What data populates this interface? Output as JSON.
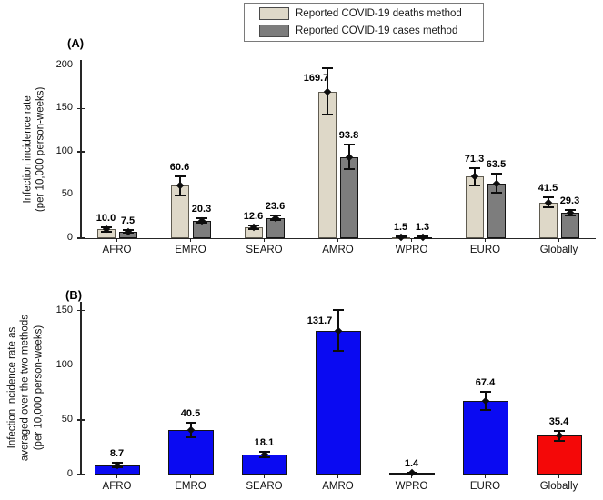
{
  "figure": {
    "panel_a_letter": "(A)",
    "panel_b_letter": "(B)"
  },
  "legend": {
    "position": "top-outside",
    "items": [
      {
        "label": "Reported COVID-19 deaths method",
        "color": "#ded8c8"
      },
      {
        "label": "Reported COVID-19 cases method",
        "color": "#7d7d7d"
      }
    ]
  },
  "colors": {
    "deaths_bar": "#ded8c8",
    "deaths_border": "#5f5b50",
    "cases_bar": "#7d7d7d",
    "cases_border": "#141414",
    "region_bar_blue": "#0a0af2",
    "global_bar_red": "#f40808",
    "axis": "#262626",
    "error_bar": "#0d0d0d"
  },
  "chart_data": [
    {
      "type": "bar",
      "panel": "A",
      "title": "",
      "xlabel": "",
      "ylabel": "Infection incidence rate\n(per 10,000 person-weeks)",
      "categories": [
        "AFRO",
        "EMRO",
        "SEARO",
        "AMRO",
        "WPRO",
        "EURO",
        "Globally"
      ],
      "yticks": [
        0,
        50,
        100,
        150,
        200
      ],
      "ylim": [
        0,
        206
      ],
      "grid": false,
      "legend_position": "north-outside",
      "series": [
        {
          "name": "Reported COVID-19 deaths method",
          "color": "#ded8c8",
          "border": "#5f5b50",
          "values": [
            10.0,
            60.6,
            12.6,
            169.7,
            1.5,
            71.3,
            41.5
          ],
          "errors": [
            2.5,
            11,
            2,
            27,
            0.5,
            10,
            6
          ],
          "label_dx": [
            0,
            0,
            0,
            -12,
            0,
            0,
            0
          ],
          "label_dy": [
            0,
            0,
            0,
            21,
            0,
            0,
            0
          ]
        },
        {
          "name": "Reported COVID-19 cases method",
          "color": "#7d7d7d",
          "border": "#141414",
          "values": [
            7.5,
            20.3,
            23.6,
            93.8,
            1.3,
            63.5,
            29.3
          ],
          "errors": [
            1.5,
            2.5,
            3,
            14,
            0.5,
            11,
            3
          ],
          "label_dx": [
            0,
            0,
            0,
            0,
            0,
            0,
            0
          ],
          "label_dy": [
            0,
            0,
            0,
            0,
            0,
            0,
            0
          ]
        }
      ]
    },
    {
      "type": "bar",
      "panel": "B",
      "title": "",
      "xlabel": "",
      "ylabel": "Infection incidence rate as\naveraged over the two methods\n(per 10,000 person-weeks)",
      "categories": [
        "AFRO",
        "EMRO",
        "SEARO",
        "AMRO",
        "WPRO",
        "EURO",
        "Globally"
      ],
      "yticks": [
        0,
        50,
        100,
        150
      ],
      "ylim": [
        0,
        158
      ],
      "grid": false,
      "series": [
        {
          "name": "Average of the two methods",
          "colors": [
            "#0a0af2",
            "#0a0af2",
            "#0a0af2",
            "#0a0af2",
            "#0a0af2",
            "#0a0af2",
            "#f40808"
          ],
          "border": "#141414",
          "values": [
            8.7,
            40.5,
            18.1,
            131.7,
            1.4,
            67.4,
            35.4
          ],
          "errors": [
            2,
            6.5,
            2.5,
            19,
            0.5,
            8,
            4.5
          ],
          "label_dx": [
            0,
            0,
            0,
            -20,
            0,
            0,
            0
          ],
          "label_dy": [
            0,
            0,
            0,
            22,
            0,
            0,
            0
          ]
        }
      ]
    }
  ]
}
